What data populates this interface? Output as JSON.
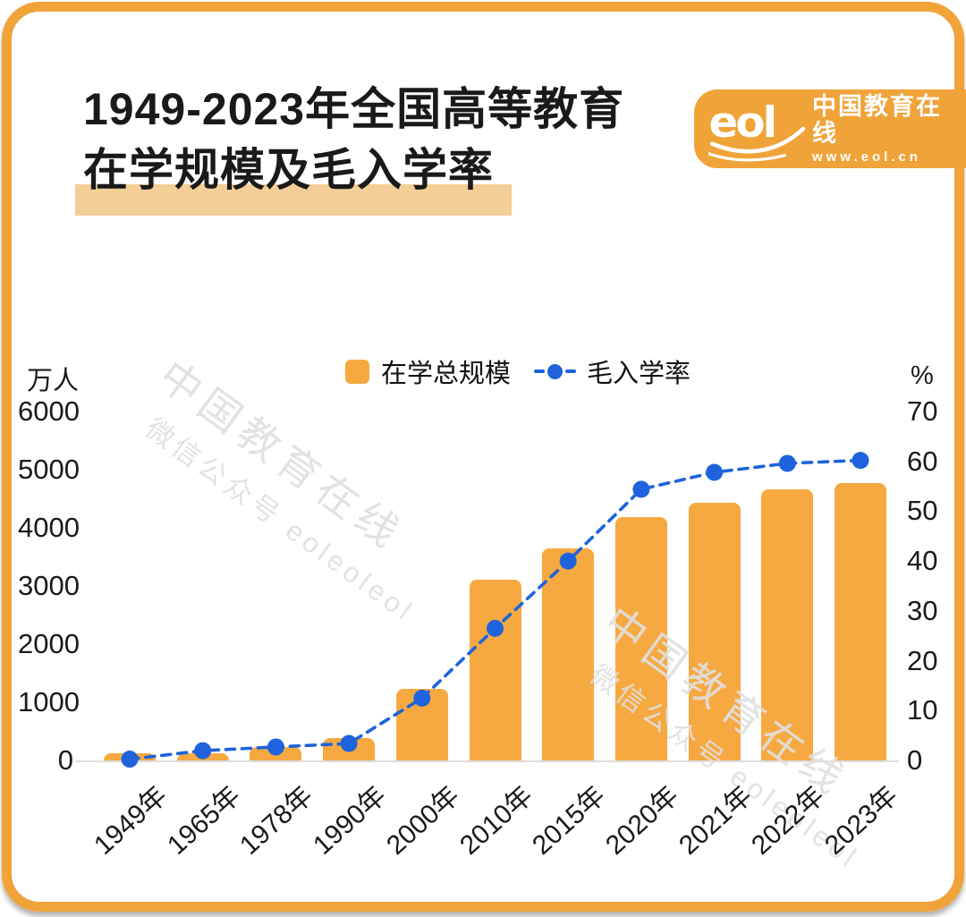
{
  "header": {
    "title_line1": "1949-2023年全国高等教育",
    "title_line2": "在学规模及毛入学率",
    "logo": {
      "brand": "eol",
      "name": "中国教育在线",
      "url": "www.eol.cn"
    }
  },
  "legend": {
    "bar_label": "在学总规模",
    "line_label": "毛入学率"
  },
  "axes": {
    "left_unit": "万人",
    "right_unit": "%",
    "left_ticks": [
      "0",
      "1000",
      "2000",
      "3000",
      "4000",
      "5000",
      "6000"
    ],
    "right_ticks": [
      "0",
      "10",
      "20",
      "30",
      "40",
      "50",
      "60",
      "70"
    ]
  },
  "watermark": {
    "line1": "中国教育在线",
    "line2": "微信公众号 eoleoleol"
  },
  "chart_data": {
    "type": "bar+line",
    "title": "1949-2023年全国高等教育在学规模及毛入学率",
    "categories": [
      "1949年",
      "1965年",
      "1978年",
      "1990年",
      "2000年",
      "2010年",
      "2015年",
      "2020年",
      "2021年",
      "2022年",
      "2023年"
    ],
    "series": [
      {
        "name": "在学总规模",
        "type": "bar",
        "axis": "left",
        "unit": "万人",
        "values": [
          11.7,
          67.4,
          228,
          382,
          1230,
          3105,
          3647,
          4183,
          4430,
          4655,
          4763
        ]
      },
      {
        "name": "毛入学率",
        "type": "line",
        "axis": "right",
        "unit": "%",
        "values": [
          0.26,
          1.96,
          2.7,
          3.4,
          12.5,
          26.5,
          40,
          54.4,
          57.8,
          59.6,
          60.2
        ]
      }
    ],
    "ylim_left": [
      0,
      6000
    ],
    "ylim_right": [
      0,
      70
    ],
    "grid": false,
    "legend_position": "top-center"
  },
  "colors": {
    "orange_frame": "#F0A339",
    "bar": "#F7A941",
    "line_blue": "#1E63DB",
    "title_highlight": "#F3CE96",
    "watermark": "#E0E0E0",
    "axis_line": "#DCDCDC",
    "text": "#1A1A1A"
  }
}
